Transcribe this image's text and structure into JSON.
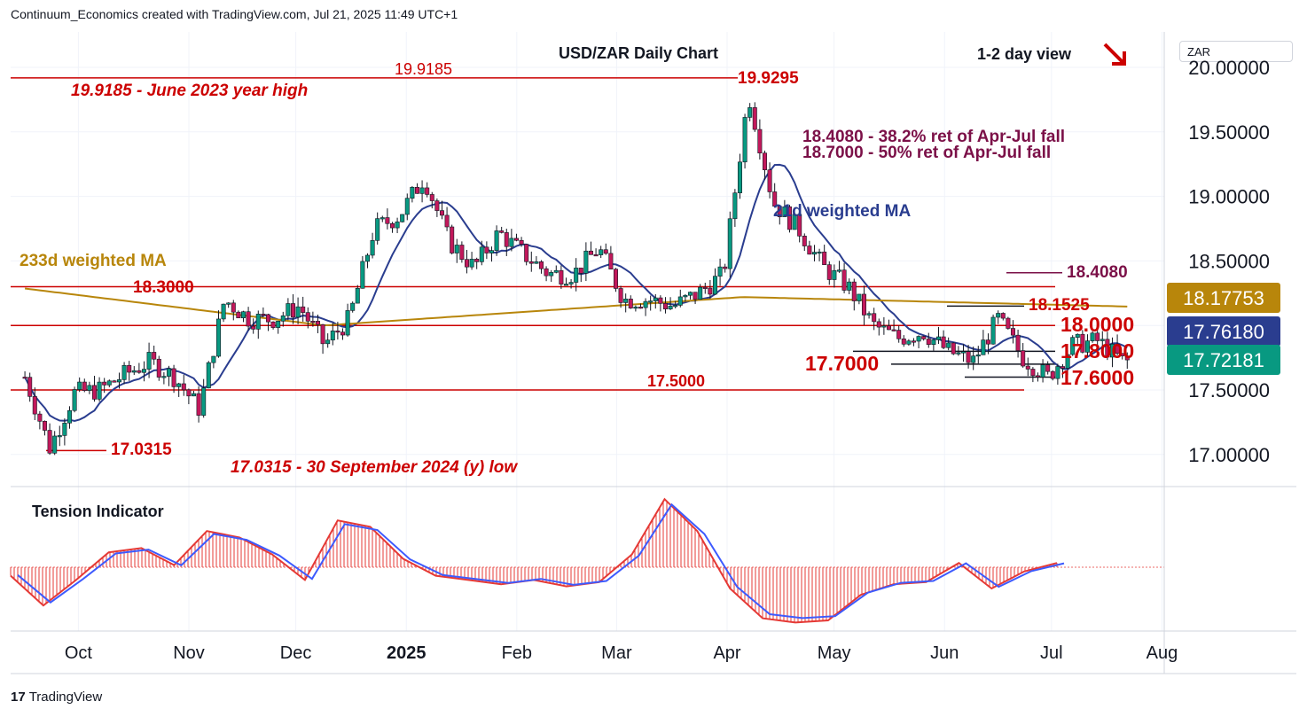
{
  "header": {
    "attribution": "Continuum_Economics created with TradingView.com, Jul 21, 2025 11:49 UTC+1",
    "currency_box": "ZAR",
    "footer_brand": "TradingView",
    "footer_mark": "17"
  },
  "colors": {
    "up_candle": "#089981",
    "down_candle": "#c2185b",
    "ma21": "#2a3d8f",
    "ma233": "#b8860b",
    "level_line": "#cc0000",
    "annotation": "#cc0000",
    "retracement": "#7b1048",
    "tension_fill": "#e53935",
    "tension_signal": "#3d5afe"
  },
  "chart_data": [
    {
      "type": "candlestick",
      "title": "USD/ZAR Daily Chart",
      "view": "1-2 day view",
      "view_arrow": "down",
      "x_ticks": [
        "Oct",
        "Nov",
        "Dec",
        "2025",
        "Feb",
        "Mar",
        "Apr",
        "May",
        "Jun",
        "Jul",
        "Aug"
      ],
      "y_ticks": [
        "20.00000",
        "19.50000",
        "19.00000",
        "18.50000",
        "18.00000",
        "17.50000",
        "17.00000"
      ],
      "ylim": [
        16.75,
        20.45
      ],
      "price_labels": [
        {
          "value": 18.17753,
          "text": "18.17753",
          "color": "#b8860b"
        },
        {
          "value": 17.7618,
          "text": "17.76180",
          "color": "#2a3d8f"
        },
        {
          "value": 17.72181,
          "text": "17.72181",
          "color": "#089981"
        }
      ],
      "horizontal_levels": [
        19.9185,
        18.3,
        18.0,
        17.5
      ],
      "short_levels": [
        17.03,
        18.15,
        17.8,
        17.7,
        17.6,
        18.408
      ],
      "annotations": [
        {
          "text": "19.9185",
          "value": 19.9185
        },
        {
          "text": "19.9185 - June 2023 year high"
        },
        {
          "text": "19.9295",
          "value": 19.9295
        },
        {
          "text": "18.4080 - 38.2% ret of Apr-Jul fall"
        },
        {
          "text": "18.7000 - 50% ret of Apr-Jul fall"
        },
        {
          "text": "21d weighted MA"
        },
        {
          "text": "233d weighted MA"
        },
        {
          "text": "18.3000",
          "value": 18.3
        },
        {
          "text": "18.4080",
          "value": 18.408
        },
        {
          "text": "18.1525",
          "value": 18.1525
        },
        {
          "text": "18.0000",
          "value": 18.0
        },
        {
          "text": "17.8000",
          "value": 17.8
        },
        {
          "text": "17.7000",
          "value": 17.7
        },
        {
          "text": "17.6000",
          "value": 17.6
        },
        {
          "text": "17.5000",
          "value": 17.5
        },
        {
          "text": "17.0315",
          "value": 17.0315
        },
        {
          "text": "17.0315 - 30 September 2024 (y) low"
        }
      ],
      "weekly_closes": [
        [
          "2024-09-16",
          17.6
        ],
        [
          "2024-09-23",
          17.05
        ],
        [
          "2024-09-30",
          17.48
        ],
        [
          "2024-10-07",
          17.5
        ],
        [
          "2024-10-14",
          17.62
        ],
        [
          "2024-10-21",
          17.72
        ],
        [
          "2024-10-28",
          17.6
        ],
        [
          "2024-11-04",
          17.35
        ],
        [
          "2024-11-11",
          18.2
        ],
        [
          "2024-11-18",
          18.05
        ],
        [
          "2024-11-25",
          18.05
        ],
        [
          "2024-12-02",
          18.15
        ],
        [
          "2024-12-09",
          17.85
        ],
        [
          "2024-12-16",
          18.05
        ],
        [
          "2024-12-23",
          18.75
        ],
        [
          "2024-12-30",
          18.85
        ],
        [
          "2025-01-06",
          19.15
        ],
        [
          "2025-01-13",
          18.65
        ],
        [
          "2025-01-20",
          18.45
        ],
        [
          "2025-01-27",
          18.72
        ],
        [
          "2025-02-03",
          18.55
        ],
        [
          "2025-02-10",
          18.4
        ],
        [
          "2025-02-17",
          18.4
        ],
        [
          "2025-02-24",
          18.6
        ],
        [
          "2025-03-03",
          18.2
        ],
        [
          "2025-03-10",
          18.2
        ],
        [
          "2025-03-17",
          18.15
        ],
        [
          "2025-03-24",
          18.25
        ],
        [
          "2025-03-31",
          18.4
        ],
        [
          "2025-04-07",
          19.8
        ],
        [
          "2025-04-14",
          18.95
        ],
        [
          "2025-04-21",
          18.75
        ],
        [
          "2025-04-28",
          18.45
        ],
        [
          "2025-05-05",
          18.3
        ],
        [
          "2025-05-12",
          18.0
        ],
        [
          "2025-05-19",
          17.9
        ],
        [
          "2025-05-26",
          17.95
        ],
        [
          "2025-06-02",
          17.8
        ],
        [
          "2025-06-09",
          17.72
        ],
        [
          "2025-06-16",
          18.05
        ],
        [
          "2025-06-23",
          17.75
        ],
        [
          "2025-06-30",
          17.6
        ],
        [
          "2025-07-07",
          17.85
        ],
        [
          "2025-07-14",
          17.88
        ],
        [
          "2025-07-21",
          17.72
        ]
      ]
    },
    {
      "type": "area",
      "title": "Tension Indicator",
      "series": [
        {
          "values": [
            -0.2,
            -0.9,
            -0.3,
            0.35,
            0.45,
            0.05,
            0.85,
            0.7,
            0.3,
            -0.3,
            1.1,
            0.95,
            0.2,
            -0.2,
            -0.3,
            -0.4,
            -0.3,
            -0.45,
            -0.35,
            0.3,
            1.6,
            0.85,
            -0.5,
            -1.2,
            -1.3,
            -1.25,
            -0.65,
            -0.4,
            -0.35,
            0.1,
            -0.5,
            -0.1,
            0.1
          ]
        }
      ]
    }
  ]
}
